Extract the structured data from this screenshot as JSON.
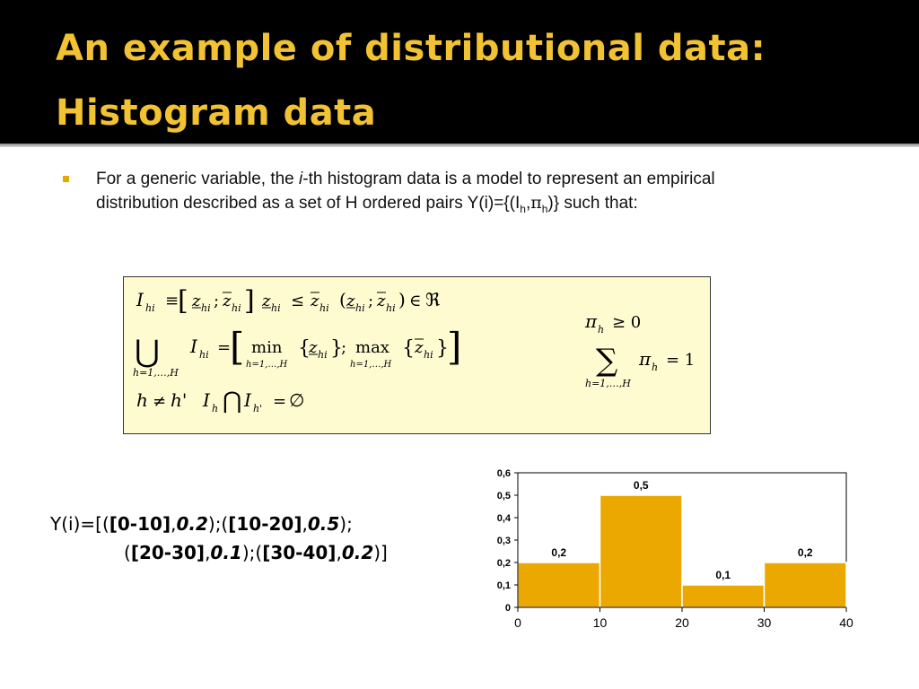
{
  "slide": {
    "title_line_1": "An example of distributional data:",
    "title_line_2": "Histogram data",
    "accent_color": "#f1c232"
  },
  "body": {
    "bullet_icon": "square-bullet-icon",
    "line1_pre": "For a generic variable, the ",
    "line1_italic": "i",
    "line1_post": "-th histogram data is a model to represent an empirical",
    "line2_pre": "distribution described as a set of H ordered pairs Y(i)={(I",
    "line2_sub_h1": "h",
    "line2_comma": ",",
    "line2_pi": "π",
    "line2_sub_h2": "h",
    "line2_post": ")}  such that:"
  },
  "formulas": {
    "box_color": "#fffbd1",
    "f1_hi": "hi",
    "f1_equiv": "≡",
    "f1_z": "z",
    "f1_semicolon": ";",
    "f1_le": "≤",
    "f1_open_paren": "(",
    "f1_close_paren": ")",
    "f1_in": "∈",
    "f1_real": "ℜ",
    "f2_union": "⋃",
    "f2_index": "h=1,…,H",
    "f2_I": "I",
    "f2_eq": "=",
    "f2_min": "min",
    "f2_max": "max",
    "f3_h": "h",
    "f3_ne": "≠",
    "f3_hprime": "h'",
    "f3_cap": "⋂",
    "f3_empty": "∅",
    "f4_pi": "π",
    "f4_ge0": "≥ 0",
    "f5_sum": "∑",
    "f5_eq1": "= 1"
  },
  "yi": {
    "l1_a": "Y(i)=[(",
    "l1_b": "[0-10]",
    "l1_c": ",",
    "l1_d": "0.2",
    "l1_e": ");(",
    "l1_f": "[10-20]",
    "l1_g": ",",
    "l1_h": "0.5",
    "l1_i": ");",
    "l2_a": "(",
    "l2_b": "[20-30]",
    "l2_c": ",",
    "l2_d": "0.1",
    "l2_e": ");(",
    "l2_f": "[30-40]",
    "l2_g": ",",
    "l2_h": "0.2",
    "l2_i": ")]"
  },
  "chart_data": {
    "type": "bar",
    "bins": [
      [
        0,
        10
      ],
      [
        10,
        20
      ],
      [
        20,
        30
      ],
      [
        30,
        40
      ]
    ],
    "values": [
      0.2,
      0.5,
      0.1,
      0.2
    ],
    "data_labels": [
      "0,2",
      "0,5",
      "0,1",
      "0,2"
    ],
    "ylim": [
      0,
      0.6
    ],
    "xlim": [
      0,
      40
    ],
    "y_ticks": [
      "0",
      "0,1",
      "0,2",
      "0,3",
      "0,4",
      "0,5",
      "0,6"
    ],
    "y_tick_values": [
      0,
      0.1,
      0.2,
      0.3,
      0.4,
      0.5,
      0.6
    ],
    "x_ticks": [
      "0",
      "10",
      "20",
      "30",
      "40"
    ],
    "x_tick_values": [
      0,
      10,
      20,
      30,
      40
    ],
    "bar_color": "#eaa800",
    "grid": false,
    "title": "",
    "xlabel": "",
    "ylabel": ""
  }
}
